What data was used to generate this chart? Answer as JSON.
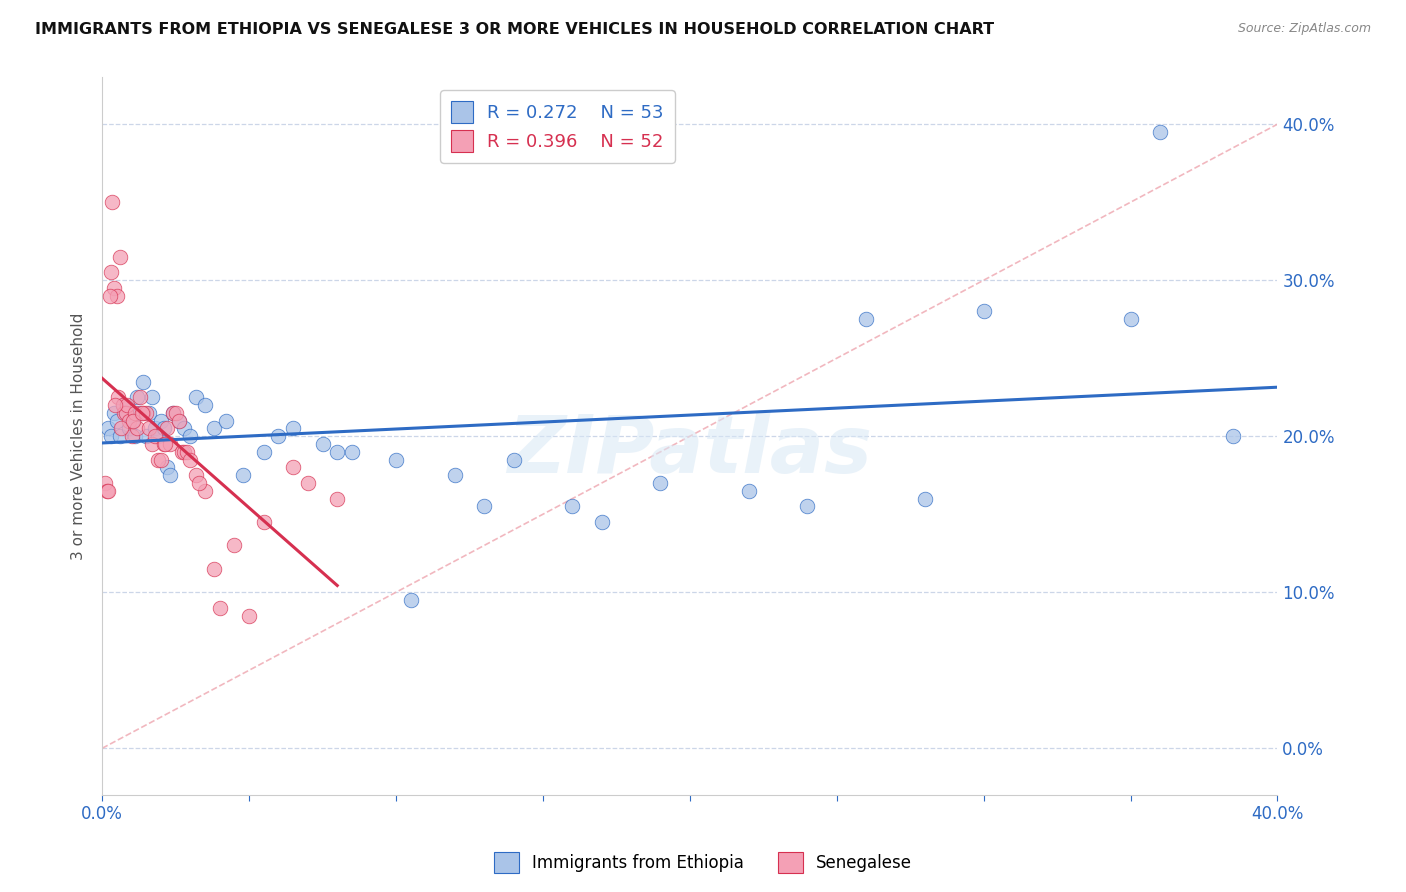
{
  "title": "IMMIGRANTS FROM ETHIOPIA VS SENEGALESE 3 OR MORE VEHICLES IN HOUSEHOLD CORRELATION CHART",
  "source": "Source: ZipAtlas.com",
  "ylabel": "3 or more Vehicles in Household",
  "ytick_values": [
    0,
    10,
    20,
    30,
    40
  ],
  "xlim": [
    0,
    40
  ],
  "ylim": [
    -3,
    43
  ],
  "legend1_label": "Immigrants from Ethiopia",
  "legend2_label": "Senegalese",
  "r1": "0.272",
  "n1": "53",
  "r2": "0.396",
  "n2": "52",
  "color_ethiopia": "#aac4e8",
  "color_senegal": "#f4a0b5",
  "trendline_ethiopia": "#2e6bc4",
  "trendline_senegal": "#d63050",
  "diagonal_color": "#f0b0b8",
  "watermark": "ZIPatlas",
  "ethiopia_x": [
    0.2,
    0.3,
    0.4,
    0.5,
    0.6,
    0.7,
    0.8,
    0.9,
    1.0,
    1.1,
    1.2,
    1.3,
    1.4,
    1.5,
    1.6,
    1.7,
    1.8,
    1.9,
    2.0,
    2.1,
    2.2,
    2.3,
    2.4,
    2.6,
    2.8,
    3.0,
    3.2,
    3.5,
    3.8,
    4.2,
    4.8,
    5.5,
    6.5,
    7.5,
    8.5,
    10.5,
    12.0,
    14.0,
    16.0,
    19.0,
    22.0,
    26.0,
    30.0,
    35.0,
    38.5,
    6.0,
    8.0,
    10.0,
    13.0,
    17.0,
    24.0,
    28.0,
    36.0
  ],
  "ethiopia_y": [
    20.5,
    20.0,
    21.5,
    21.0,
    20.0,
    22.0,
    21.5,
    20.5,
    21.0,
    20.0,
    22.5,
    21.5,
    23.5,
    20.0,
    21.5,
    22.5,
    20.5,
    20.0,
    21.0,
    20.5,
    18.0,
    17.5,
    21.5,
    21.0,
    20.5,
    20.0,
    22.5,
    22.0,
    20.5,
    21.0,
    17.5,
    19.0,
    20.5,
    19.5,
    19.0,
    9.5,
    17.5,
    18.5,
    15.5,
    17.0,
    16.5,
    27.5,
    28.0,
    27.5,
    20.0,
    20.0,
    19.0,
    18.5,
    15.5,
    14.5,
    15.5,
    16.0,
    39.5
  ],
  "senegal_x": [
    0.1,
    0.15,
    0.2,
    0.3,
    0.35,
    0.4,
    0.5,
    0.55,
    0.6,
    0.7,
    0.75,
    0.8,
    0.85,
    0.9,
    1.0,
    1.1,
    1.2,
    1.3,
    1.4,
    1.5,
    1.6,
    1.7,
    1.8,
    1.9,
    2.0,
    2.1,
    2.2,
    2.3,
    2.4,
    2.5,
    2.6,
    2.7,
    2.8,
    2.9,
    3.0,
    3.2,
    3.5,
    3.8,
    4.0,
    4.5,
    5.0,
    5.5,
    6.5,
    7.0,
    8.0,
    0.25,
    0.45,
    0.65,
    1.05,
    1.35,
    2.15,
    3.3
  ],
  "senegal_y": [
    17.0,
    16.5,
    16.5,
    30.5,
    35.0,
    29.5,
    29.0,
    22.5,
    31.5,
    22.0,
    21.5,
    21.5,
    22.0,
    21.0,
    20.0,
    21.5,
    20.5,
    22.5,
    21.5,
    21.5,
    20.5,
    19.5,
    20.0,
    18.5,
    18.5,
    19.5,
    20.5,
    19.5,
    21.5,
    21.5,
    21.0,
    19.0,
    19.0,
    19.0,
    18.5,
    17.5,
    16.5,
    11.5,
    9.0,
    13.0,
    8.5,
    14.5,
    18.0,
    17.0,
    16.0,
    29.0,
    22.0,
    20.5,
    21.0,
    21.5,
    19.5,
    17.0
  ]
}
